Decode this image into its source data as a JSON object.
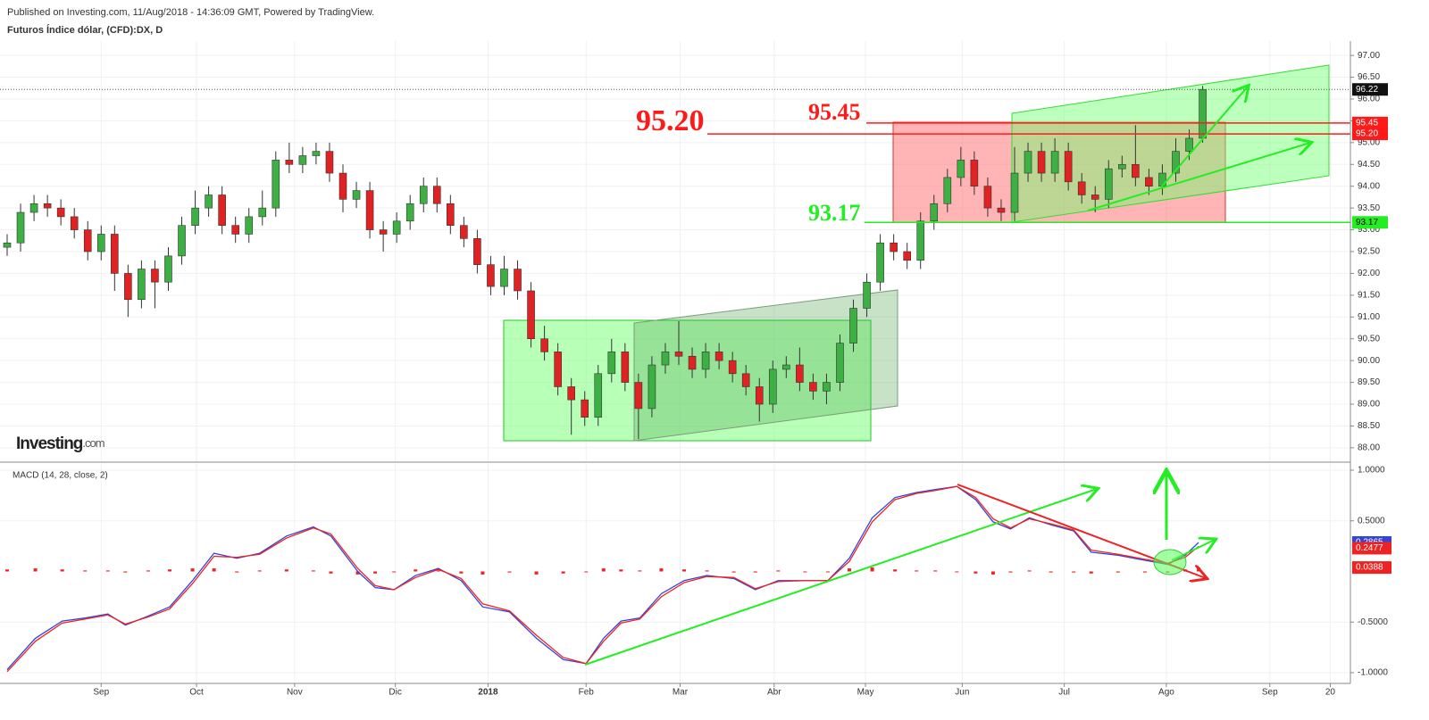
{
  "header": {
    "published": "Published on Investing.com, 11/Aug/2018 - 14:36:09 GMT, Powered by TradingView.",
    "instrument": "Futuros Índice dólar, (CFD):DX, D",
    "logo": "Investing",
    "logo_suffix": ".com"
  },
  "chart_data": [
    {
      "type": "candlestick",
      "up_color": "#3cb043",
      "down_color": "#e02222",
      "xlim": [
        0,
        100
      ],
      "ylim": [
        87.67,
        97.33
      ],
      "yticks": [
        {
          "value": 88,
          "label": "88.00"
        },
        {
          "value": 88.5,
          "label": "88.50"
        },
        {
          "value": 89,
          "label": "89.00"
        },
        {
          "value": 89.5,
          "label": "89.50"
        },
        {
          "value": 90,
          "label": "90.00"
        },
        {
          "value": 90.5,
          "label": "90.50"
        },
        {
          "value": 91,
          "label": "91.00"
        },
        {
          "value": 91.5,
          "label": "91.50"
        },
        {
          "value": 92,
          "label": "92.00"
        },
        {
          "value": 92.5,
          "label": "92.50"
        },
        {
          "value": 93,
          "label": "93.00"
        },
        {
          "value": 93.5,
          "label": "93.50"
        },
        {
          "value": 94,
          "label": "94.00"
        },
        {
          "value": 94.5,
          "label": "94.50"
        },
        {
          "value": 95,
          "label": "95.00"
        },
        {
          "value": 95.5,
          "label": "95.50"
        },
        {
          "value": 96,
          "label": "96.00"
        },
        {
          "value": 96.5,
          "label": "96.50"
        },
        {
          "value": 97,
          "label": "97.00"
        }
      ],
      "grid": true,
      "open": [
        92.6,
        92.7,
        93.4,
        93.6,
        93.5,
        93.3,
        93.0,
        92.5,
        92.9,
        92.0,
        91.4,
        92.1,
        91.8,
        92.4,
        93.1,
        93.5,
        93.8,
        93.1,
        92.9,
        93.3,
        93.5,
        94.6,
        94.5,
        94.7,
        94.8,
        94.3,
        93.7,
        93.9,
        93.0,
        92.9,
        93.2,
        93.6,
        94.0,
        93.6,
        93.1,
        92.8,
        92.2,
        91.7,
        92.1,
        91.6,
        90.5,
        90.2,
        89.4,
        89.1,
        88.7,
        89.7,
        90.2,
        89.5,
        88.9,
        89.9,
        90.2,
        90.1,
        89.8,
        90.2,
        90.0,
        89.7,
        89.4,
        89.0,
        89.8,
        89.9,
        89.5,
        89.3,
        89.5,
        90.4,
        91.2,
        91.8,
        92.7,
        92.5,
        92.3,
        93.2,
        93.6,
        94.2,
        94.6,
        94.0,
        93.5,
        93.4,
        94.3,
        94.8,
        94.3,
        94.8,
        94.1,
        93.8,
        93.7,
        94.4,
        94.5,
        94.2,
        94.0,
        94.3,
        94.8,
        95.1
      ],
      "high": [
        92.9,
        93.6,
        93.8,
        93.8,
        93.7,
        93.5,
        93.2,
        93.1,
        93.1,
        92.2,
        92.3,
        92.3,
        92.6,
        93.3,
        93.9,
        94.0,
        94.0,
        93.3,
        93.5,
        93.9,
        94.8,
        95.0,
        94.9,
        95.0,
        95.0,
        94.5,
        94.1,
        94.1,
        93.2,
        93.4,
        93.8,
        94.2,
        94.2,
        93.8,
        93.3,
        93.0,
        92.4,
        92.4,
        92.3,
        91.8,
        90.8,
        90.4,
        89.6,
        89.3,
        89.9,
        90.5,
        90.4,
        89.7,
        90.1,
        90.4,
        90.9,
        90.3,
        90.4,
        90.4,
        90.2,
        89.9,
        89.6,
        90.0,
        90.1,
        90.3,
        89.7,
        89.7,
        90.6,
        91.4,
        92.0,
        92.9,
        92.9,
        92.7,
        93.4,
        93.8,
        94.4,
        94.9,
        94.8,
        94.2,
        93.7,
        94.9,
        95.0,
        95.0,
        95.1,
        95.0,
        94.3,
        94.0,
        94.6,
        94.7,
        95.4,
        94.4,
        94.5,
        95.1,
        95.3,
        96.3
      ],
      "low": [
        92.4,
        92.5,
        93.2,
        93.3,
        93.1,
        92.8,
        92.3,
        92.3,
        91.6,
        91.0,
        91.2,
        91.2,
        91.6,
        92.2,
        92.9,
        93.3,
        92.9,
        92.7,
        92.7,
        93.1,
        93.3,
        94.3,
        94.3,
        94.5,
        94.1,
        93.4,
        93.5,
        92.8,
        92.5,
        92.7,
        93.0,
        93.4,
        93.4,
        92.9,
        92.6,
        92.0,
        91.5,
        91.5,
        91.4,
        90.3,
        90.0,
        89.2,
        88.3,
        88.5,
        88.5,
        89.5,
        89.3,
        88.2,
        88.7,
        89.7,
        89.9,
        89.6,
        89.6,
        89.8,
        89.5,
        89.2,
        88.6,
        88.8,
        89.6,
        89.3,
        89.1,
        89.0,
        89.3,
        90.2,
        91.0,
        91.6,
        92.3,
        92.1,
        92.1,
        93.0,
        93.4,
        94.0,
        93.8,
        93.3,
        93.2,
        93.2,
        94.1,
        94.1,
        94.1,
        93.9,
        93.6,
        93.4,
        93.5,
        94.2,
        94.0,
        93.8,
        93.8,
        94.1,
        94.6,
        95.0
      ],
      "close": [
        92.7,
        93.4,
        93.6,
        93.5,
        93.3,
        93.0,
        92.5,
        92.9,
        92.0,
        91.4,
        92.1,
        91.8,
        92.4,
        93.1,
        93.5,
        93.8,
        93.1,
        92.9,
        93.3,
        93.5,
        94.6,
        94.5,
        94.7,
        94.8,
        94.3,
        93.7,
        93.9,
        93.0,
        92.9,
        93.2,
        93.6,
        94.0,
        93.6,
        93.1,
        92.8,
        92.2,
        91.7,
        92.1,
        91.6,
        90.5,
        90.2,
        89.4,
        89.1,
        88.7,
        89.7,
        90.2,
        89.5,
        88.9,
        89.9,
        90.2,
        90.1,
        89.8,
        90.2,
        90.0,
        89.7,
        89.4,
        89.0,
        89.8,
        89.9,
        89.5,
        89.3,
        89.5,
        90.4,
        91.2,
        91.8,
        92.7,
        92.5,
        92.3,
        93.2,
        93.6,
        94.2,
        94.6,
        94.0,
        93.5,
        93.4,
        94.3,
        94.8,
        94.3,
        94.8,
        94.1,
        93.8,
        93.7,
        94.4,
        94.5,
        94.2,
        94.0,
        94.3,
        94.8,
        95.1,
        96.22
      ],
      "levels": [
        {
          "value": 95.45,
          "color": "#ff1a1a"
        },
        {
          "value": 95.2,
          "label": "95.20",
          "color": "#ff1a1a"
        },
        {
          "value": 93.17,
          "color": "#22ee22"
        }
      ]
    },
    {
      "type": "line",
      "title": "MACD (14, 28, close, 2)",
      "xlim": [
        0,
        100
      ],
      "ylim": [
        -1.106,
        1.062
      ],
      "yticks": [
        {
          "value": 1,
          "label": "1.0000"
        },
        {
          "value": 0.5,
          "label": "0.5000"
        },
        {
          "value": -0.5,
          "label": "-0.5000"
        },
        {
          "value": -1,
          "label": "-1.0000"
        }
      ],
      "xticks": [
        {
          "value": 7.0,
          "label": "Sep"
        },
        {
          "value": 14.1,
          "label": "Oct"
        },
        {
          "value": 21.4,
          "label": "Nov"
        },
        {
          "value": 28.9,
          "label": "Dic"
        },
        {
          "value": 35.8,
          "label": "2018"
        },
        {
          "value": 43.1,
          "label": "Feb"
        },
        {
          "value": 50.1,
          "label": "Mar"
        },
        {
          "value": 57.1,
          "label": "Abr"
        },
        {
          "value": 63.9,
          "label": "May"
        },
        {
          "value": 71.1,
          "label": "Jun"
        },
        {
          "value": 78.7,
          "label": "Jul"
        },
        {
          "value": 86.3,
          "label": "Ago"
        },
        {
          "value": 94.0,
          "label": "Sep"
        },
        {
          "value": 98.5,
          "label": "20"
        }
      ],
      "x": [
        0,
        2.1,
        4.1,
        5.8,
        7.5,
        8.8,
        10.5,
        12.1,
        13.8,
        15.4,
        17.1,
        18.8,
        20.8,
        22.8,
        24.1,
        26.1,
        27.4,
        28.8,
        30.4,
        32.1,
        33.8,
        35.4,
        37.4,
        39.4,
        41.4,
        43.1,
        44.4,
        45.7,
        47.1,
        48.7,
        50.4,
        52.1,
        54.1,
        55.7,
        57.4,
        59.4,
        61.1,
        62.7,
        64.4,
        66.1,
        67.7,
        69.1,
        70.7,
        72.1,
        73.4,
        74.7,
        76.1,
        77.7,
        79.4,
        80.7,
        82.7,
        84.7,
        86.4,
        87.7,
        88.7
      ],
      "series": [
        {
          "color": "#3344dd",
          "values": [
            -0.97,
            -0.66,
            -0.49,
            -0.46,
            -0.42,
            -0.53,
            -0.44,
            -0.35,
            -0.09,
            0.18,
            0.13,
            0.18,
            0.35,
            0.44,
            0.35,
            0,
            -0.16,
            -0.18,
            -0.04,
            0.03,
            -0.09,
            -0.35,
            -0.4,
            -0.66,
            -0.87,
            -0.91,
            -0.66,
            -0.49,
            -0.46,
            -0.22,
            -0.09,
            -0.04,
            -0.07,
            -0.18,
            -0.09,
            -0.09,
            -0.09,
            0.13,
            0.53,
            0.73,
            0.78,
            0.81,
            0.84,
            0.71,
            0.49,
            0.42,
            0.53,
            0.46,
            0.4,
            0.19,
            0.16,
            0.11,
            0.07,
            0.16,
            0.2865
          ]
        },
        {
          "color": "#ee2222",
          "values": [
            -0.99,
            -0.69,
            -0.51,
            -0.47,
            -0.43,
            -0.52,
            -0.45,
            -0.37,
            -0.12,
            0.15,
            0.14,
            0.17,
            0.33,
            0.43,
            0.37,
            0.03,
            -0.14,
            -0.18,
            -0.06,
            0.02,
            -0.07,
            -0.32,
            -0.39,
            -0.63,
            -0.85,
            -0.91,
            -0.69,
            -0.51,
            -0.47,
            -0.25,
            -0.11,
            -0.05,
            -0.06,
            -0.17,
            -0.1,
            -0.09,
            -0.09,
            0.1,
            0.49,
            0.71,
            0.77,
            0.8,
            0.84,
            0.73,
            0.52,
            0.43,
            0.52,
            0.47,
            0.41,
            0.21,
            0.17,
            0.12,
            0.08,
            0.14,
            0.2477
          ]
        }
      ],
      "histogram": {
        "color": "#ee2222",
        "values": [
          0.02,
          0.03,
          0.02,
          0.01,
          0.01,
          -0.01,
          0.01,
          0.02,
          0.03,
          0.03,
          -0.01,
          0.01,
          0.02,
          0.01,
          -0.02,
          -0.03,
          -0.02,
          0,
          0.02,
          0.01,
          -0.02,
          -0.03,
          -0.01,
          -0.03,
          -0.02,
          0,
          0.03,
          0.02,
          0.01,
          0.03,
          0.02,
          0.01,
          -0.01,
          -0.01,
          0.01,
          0,
          0,
          0.03,
          0.04,
          0.02,
          0.01,
          0.01,
          0,
          -0.02,
          -0.03,
          -0.01,
          0.01,
          -0.01,
          -0.01,
          -0.02,
          -0.01,
          -0.01,
          -0.01,
          0.02,
          0.0388
        ]
      }
    }
  ]
}
